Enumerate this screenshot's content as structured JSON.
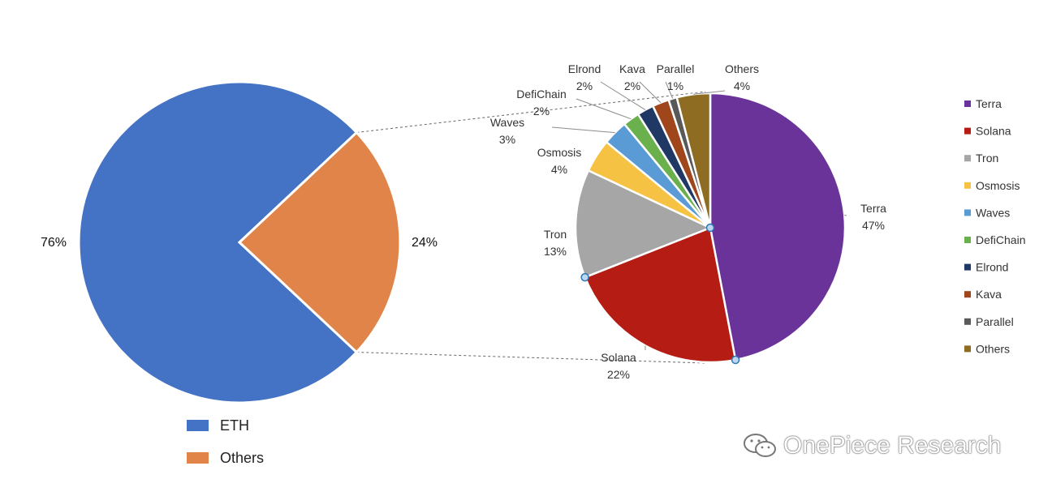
{
  "chart_data": [
    {
      "type": "pie",
      "categories": [
        "ETH",
        "Others"
      ],
      "values": [
        76,
        24
      ],
      "data_labels": [
        "76%",
        "24%"
      ],
      "colors": [
        "#4472C4",
        "#E0844A"
      ],
      "legend": {
        "placement": "bottom",
        "entries": [
          "ETH",
          "Others"
        ]
      }
    },
    {
      "type": "pie",
      "categories": [
        "Terra",
        "Solana",
        "Tron",
        "Osmosis",
        "Waves",
        "DefiChain",
        "Elrond",
        "Kava",
        "Parallel",
        "Others"
      ],
      "values": [
        47,
        22,
        13,
        4,
        3,
        2,
        2,
        2,
        1,
        4
      ],
      "data_labels": [
        "47%",
        "22%",
        "13%",
        "4%",
        "3%",
        "2%",
        "2%",
        "2%",
        "1%",
        "4%"
      ],
      "colors": [
        "#6A3399",
        "#B41C14",
        "#A6A6A6",
        "#F6C244",
        "#5B9BD5",
        "#6AB04C",
        "#203864",
        "#A0461D",
        "#595959",
        "#8E6C22"
      ],
      "legend": {
        "placement": "right",
        "entries": [
          "Terra",
          "Solana",
          "Tron",
          "Osmosis",
          "Waves",
          "DefiChain",
          "Elrond",
          "Kava",
          "Parallel",
          "Others"
        ]
      }
    }
  ],
  "watermark": {
    "text": "OnePiece Research"
  }
}
